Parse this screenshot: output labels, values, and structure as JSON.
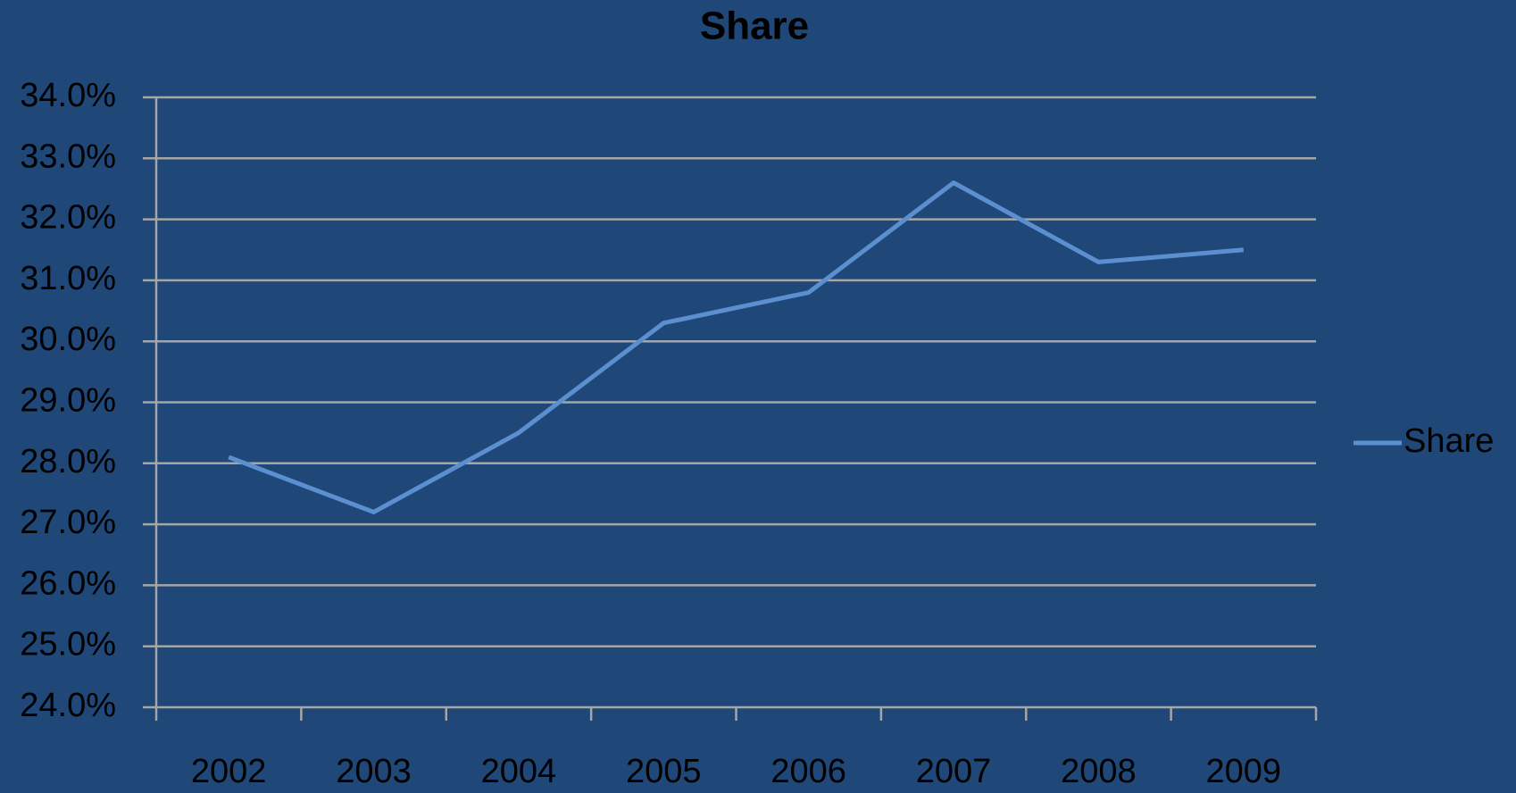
{
  "chart_data": {
    "type": "line",
    "title": "Share",
    "categories": [
      "2002",
      "2003",
      "2004",
      "2005",
      "2006",
      "2007",
      "2008",
      "2009"
    ],
    "series": [
      {
        "name": "Share",
        "color": "#5b8fd0",
        "values": [
          28.1,
          27.2,
          28.5,
          30.3,
          30.8,
          32.6,
          31.3,
          31.5
        ]
      }
    ],
    "ylim": [
      24,
      34
    ],
    "yticks": [
      {
        "value": 24,
        "label": "24.0%"
      },
      {
        "value": 25,
        "label": "25.0%"
      },
      {
        "value": 26,
        "label": "26.0%"
      },
      {
        "value": 27,
        "label": "27.0%"
      },
      {
        "value": 28,
        "label": "28.0%"
      },
      {
        "value": 29,
        "label": "29.0%"
      },
      {
        "value": 30,
        "label": "30.0%"
      },
      {
        "value": 31,
        "label": "31.0%"
      },
      {
        "value": 32,
        "label": "32.0%"
      },
      {
        "value": 33,
        "label": "33.0%"
      },
      {
        "value": 34,
        "label": "34.0%"
      }
    ],
    "grid": true,
    "legend": "right"
  }
}
